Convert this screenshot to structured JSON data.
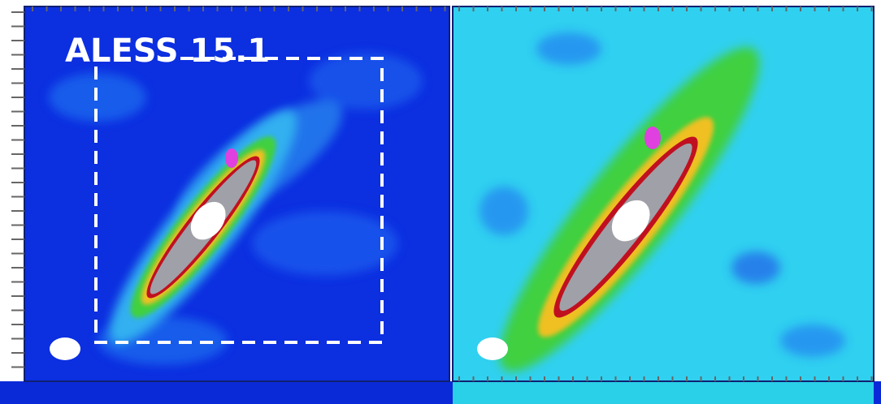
{
  "label": "ALESS 15.1"
}
